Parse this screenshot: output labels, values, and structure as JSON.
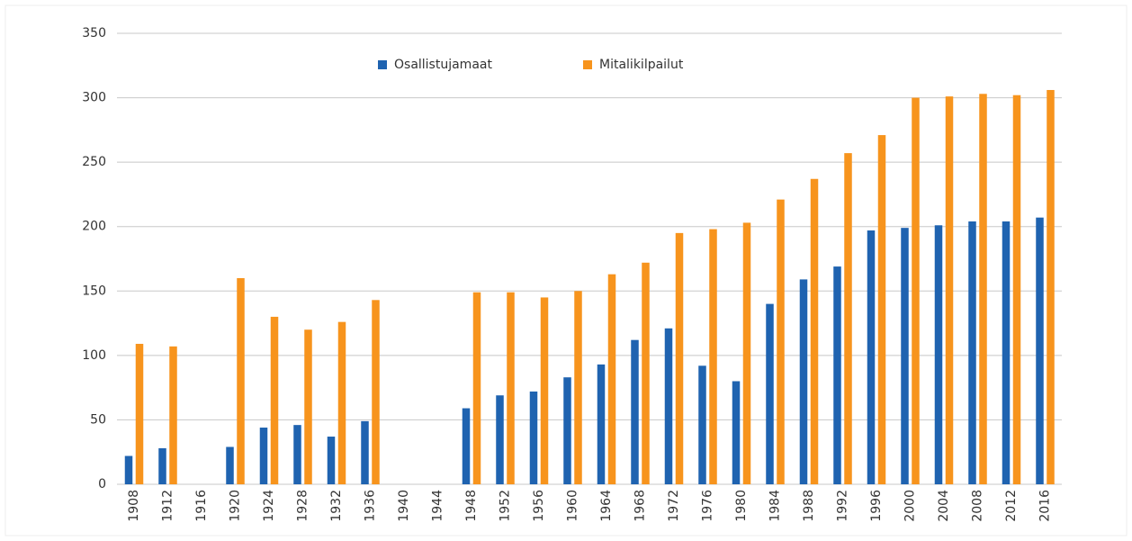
{
  "chart_data": {
    "type": "bar",
    "categories": [
      "1908",
      "1912",
      "1916",
      "1920",
      "1924",
      "1928",
      "1932",
      "1936",
      "1940",
      "1944",
      "1948",
      "1952",
      "1956",
      "1960",
      "1964",
      "1968",
      "1972",
      "1976",
      "1980",
      "1984",
      "1988",
      "1992",
      "1996",
      "2000",
      "2004",
      "2008",
      "2012",
      "2016"
    ],
    "series": [
      {
        "name": "Osallistujamaat",
        "color": "#1f63b0",
        "values": [
          22,
          28,
          null,
          29,
          44,
          46,
          37,
          49,
          null,
          null,
          59,
          69,
          72,
          83,
          93,
          112,
          121,
          92,
          80,
          140,
          159,
          169,
          197,
          199,
          201,
          204,
          204,
          207
        ]
      },
      {
        "name": "Mitalikilpailut",
        "color": "#f7941d",
        "values": [
          109,
          107,
          null,
          160,
          130,
          120,
          126,
          143,
          null,
          null,
          149,
          149,
          145,
          150,
          163,
          172,
          195,
          198,
          203,
          221,
          237,
          257,
          271,
          300,
          301,
          303,
          302,
          306
        ]
      }
    ],
    "ylim": [
      0,
      350
    ],
    "yticks": [
      0,
      50,
      100,
      150,
      200,
      250,
      300,
      350
    ],
    "grid": true,
    "legend": "top"
  }
}
